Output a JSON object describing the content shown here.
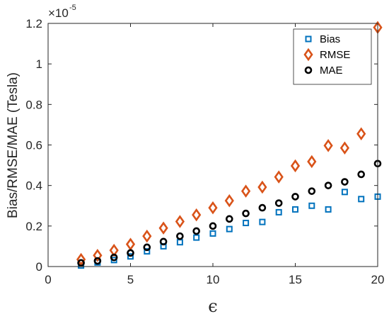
{
  "chart_data": {
    "type": "scatter",
    "xlabel": "ϵ",
    "ylabel": "Bias/RMSE/MAE (Tesla)",
    "y_multiplier": {
      "base": "×10",
      "exponent": "-5"
    },
    "xlim": [
      0,
      20
    ],
    "ylim": [
      0,
      1.2
    ],
    "xticks": [
      0,
      5,
      10,
      15,
      20
    ],
    "yticks": [
      0,
      0.2,
      0.4,
      0.6,
      0.8,
      1,
      1.2
    ],
    "grid": false,
    "legend_position": "top-right",
    "x": [
      2,
      3,
      4,
      5,
      6,
      7,
      8,
      9,
      10,
      11,
      12,
      13,
      14,
      15,
      16,
      17,
      18,
      19,
      20
    ],
    "series": [
      {
        "name": "Bias",
        "marker": "square",
        "color": "#0072BD",
        "values": [
          0.005,
          0.02,
          0.032,
          0.05,
          0.075,
          0.1,
          0.12,
          0.143,
          0.163,
          0.185,
          0.215,
          0.22,
          0.268,
          0.282,
          0.3,
          0.282,
          0.368,
          0.333,
          0.345
        ]
      },
      {
        "name": "RMSE",
        "marker": "diamond",
        "color": "#D95319",
        "values": [
          0.035,
          0.055,
          0.08,
          0.11,
          0.15,
          0.19,
          0.222,
          0.255,
          0.29,
          0.325,
          0.372,
          0.392,
          0.442,
          0.497,
          0.518,
          0.597,
          0.585,
          0.655,
          1.18
        ]
      },
      {
        "name": "MAE",
        "marker": "circle",
        "color": "#000000",
        "values": [
          0.018,
          0.028,
          0.045,
          0.067,
          0.095,
          0.123,
          0.15,
          0.175,
          0.2,
          0.235,
          0.262,
          0.29,
          0.313,
          0.345,
          0.372,
          0.4,
          0.418,
          0.455,
          0.508
        ]
      }
    ]
  }
}
